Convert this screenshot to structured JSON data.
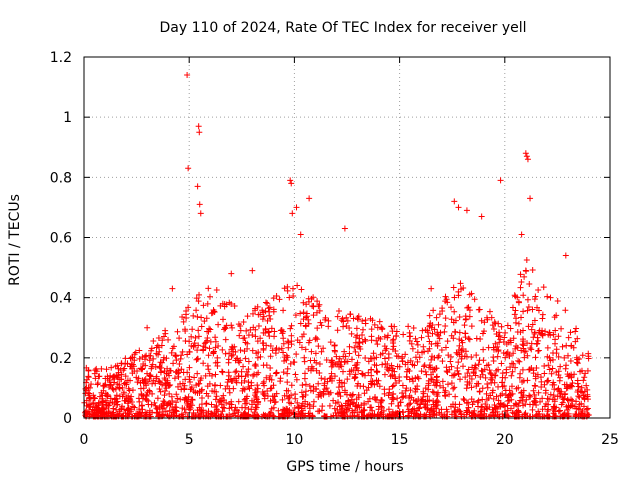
{
  "chart_data": {
    "type": "scatter",
    "title": "Day 110 of 2024, Rate Of TEC Index for receiver yell",
    "xlabel": "GPS time / hours",
    "ylabel": "ROTI / TECUs",
    "xlim": [
      0,
      25
    ],
    "ylim": [
      0,
      1.2
    ],
    "xticks": [
      0,
      5,
      10,
      15,
      20,
      25
    ],
    "xtick_labels": [
      "0",
      "5",
      "10",
      "15",
      "20",
      "25"
    ],
    "yticks": [
      0,
      0.2,
      0.4,
      0.6,
      0.8,
      1.0,
      1.2
    ],
    "ytick_labels": [
      "0",
      "0.2",
      "0.4",
      "0.6",
      "0.8",
      "1",
      "1.2"
    ],
    "grid": true,
    "marker": "+",
    "color": "#ff0000",
    "x_range": [
      0,
      24
    ],
    "series": [
      {
        "name": "ROTI",
        "x": [
          4.9,
          4.95,
          5.45,
          5.48,
          5.4,
          5.5,
          5.55,
          9.8,
          9.85,
          9.9,
          10.1,
          10.3,
          10.7,
          12.4,
          17.6,
          17.8,
          18.2,
          18.9,
          19.8,
          21.0,
          21.05,
          21.1,
          20.8,
          22.9,
          21.2,
          16.5,
          7.0,
          8.0,
          4.2,
          3.0
        ],
        "y": [
          1.14,
          0.83,
          0.97,
          0.95,
          0.77,
          0.71,
          0.68,
          0.79,
          0.78,
          0.68,
          0.7,
          0.61,
          0.73,
          0.63,
          0.72,
          0.7,
          0.69,
          0.67,
          0.79,
          0.88,
          0.87,
          0.86,
          0.61,
          0.54,
          0.73,
          0.43,
          0.48,
          0.49,
          0.43,
          0.3
        ]
      }
    ],
    "envelope": {
      "hours": [
        0,
        1,
        2,
        3,
        4,
        5,
        6,
        7,
        8,
        9,
        10,
        11,
        12,
        13,
        14,
        15,
        16,
        17,
        18,
        19,
        20,
        21,
        22,
        23,
        24
      ],
      "typical_max": [
        0.18,
        0.16,
        0.2,
        0.24,
        0.3,
        0.38,
        0.45,
        0.38,
        0.36,
        0.4,
        0.46,
        0.42,
        0.36,
        0.34,
        0.33,
        0.3,
        0.32,
        0.4,
        0.46,
        0.38,
        0.3,
        0.55,
        0.42,
        0.36,
        0.22
      ]
    }
  }
}
